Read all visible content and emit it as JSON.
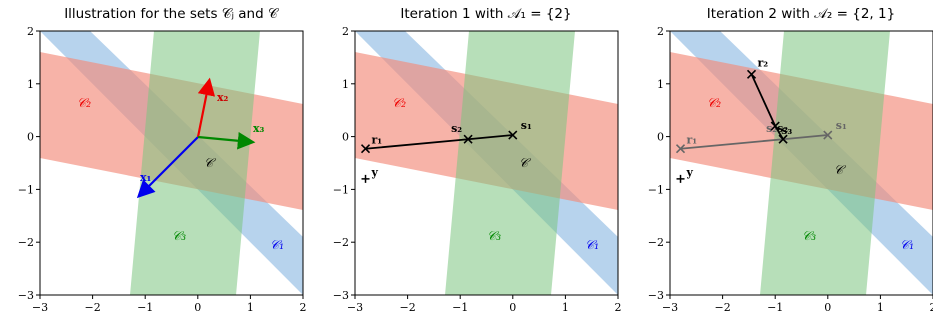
{
  "chart_data": [
    {
      "type": "scatter",
      "title": "Illustration for the sets 𝒞ⱼ and 𝒞",
      "xlim": [
        -3,
        2
      ],
      "ylim": [
        -3,
        2
      ],
      "xticks": [
        "−3",
        "−2",
        "−1",
        "0",
        "1",
        "2"
      ],
      "yticks": [
        "−3",
        "−2",
        "−1",
        "0",
        "1",
        "2"
      ],
      "sets": [
        {
          "name": "𝒞₁",
          "color": "#6fa8dc",
          "label_at": [
            1.4,
            -2.1
          ]
        },
        {
          "name": "𝒞₂",
          "color": "#f28b7a",
          "label_at": [
            -2.3,
            0.65
          ]
        },
        {
          "name": "𝒞₃",
          "color": "#7cc47f",
          "label_at": [
            -0.4,
            -1.95
          ]
        },
        {
          "name": "𝒞",
          "color": "#000000",
          "label_at": [
            0.2,
            -0.55
          ]
        }
      ],
      "vectors": [
        {
          "name": "x₁",
          "color": "#0000ee",
          "to": [
            -1.1,
            -1.1
          ]
        },
        {
          "name": "x₂",
          "color": "#ee0000",
          "to": [
            0.2,
            1.05
          ]
        },
        {
          "name": "x₃",
          "color": "#008800",
          "to": [
            1.0,
            -0.1
          ]
        }
      ]
    },
    {
      "type": "line",
      "title": "Iteration 1 with 𝒜₁ = {2}",
      "xlim": [
        -3,
        2
      ],
      "ylim": [
        -3,
        2
      ],
      "xticks": [
        "−3",
        "−2",
        "−1",
        "0",
        "1",
        "2"
      ],
      "yticks": [
        "−3",
        "−2",
        "−1",
        "0",
        "1",
        "2"
      ],
      "y_point": {
        "name": "y",
        "x": -2.8,
        "y": -0.8
      },
      "residual_paths": [
        {
          "color": "#000000",
          "points": [
            {
              "name": "r₁",
              "x": -2.8,
              "y": -0.23
            },
            {
              "name": "s₂",
              "x": -0.85,
              "y": -0.05
            },
            {
              "name": "s₁",
              "x": 0.0,
              "y": 0.03
            }
          ]
        }
      ],
      "set_labels": [
        "𝒞₁",
        "𝒞₂",
        "𝒞₃",
        "𝒞"
      ]
    },
    {
      "type": "line",
      "title": "Iteration 2 with 𝒜₂ = {2, 1}",
      "xlim": [
        -3,
        2
      ],
      "ylim": [
        -3,
        2
      ],
      "xticks": [
        "−3",
        "−2",
        "−1",
        "0",
        "1",
        "2"
      ],
      "yticks": [
        "−3",
        "−2",
        "−1",
        "0",
        "1",
        "2"
      ],
      "y_point": {
        "name": "y",
        "x": -2.8,
        "y": -0.8
      },
      "residual_paths": [
        {
          "color": "#666666",
          "points": [
            {
              "name": "r₁",
              "x": -2.8,
              "y": -0.23
            },
            {
              "name": "s₂",
              "x": -0.85,
              "y": -0.05
            },
            {
              "name": "s₁",
              "x": 0.0,
              "y": 0.03
            }
          ]
        },
        {
          "color": "#000000",
          "points": [
            {
              "name": "r₂",
              "x": -1.45,
              "y": 1.18
            },
            {
              "name": "s₃",
              "x": -1.0,
              "y": 0.2
            },
            {
              "name": "s₂",
              "x": -0.85,
              "y": -0.05
            }
          ]
        }
      ],
      "set_labels": [
        "𝒞₁",
        "𝒞₂",
        "𝒞₃",
        "𝒞"
      ]
    }
  ]
}
